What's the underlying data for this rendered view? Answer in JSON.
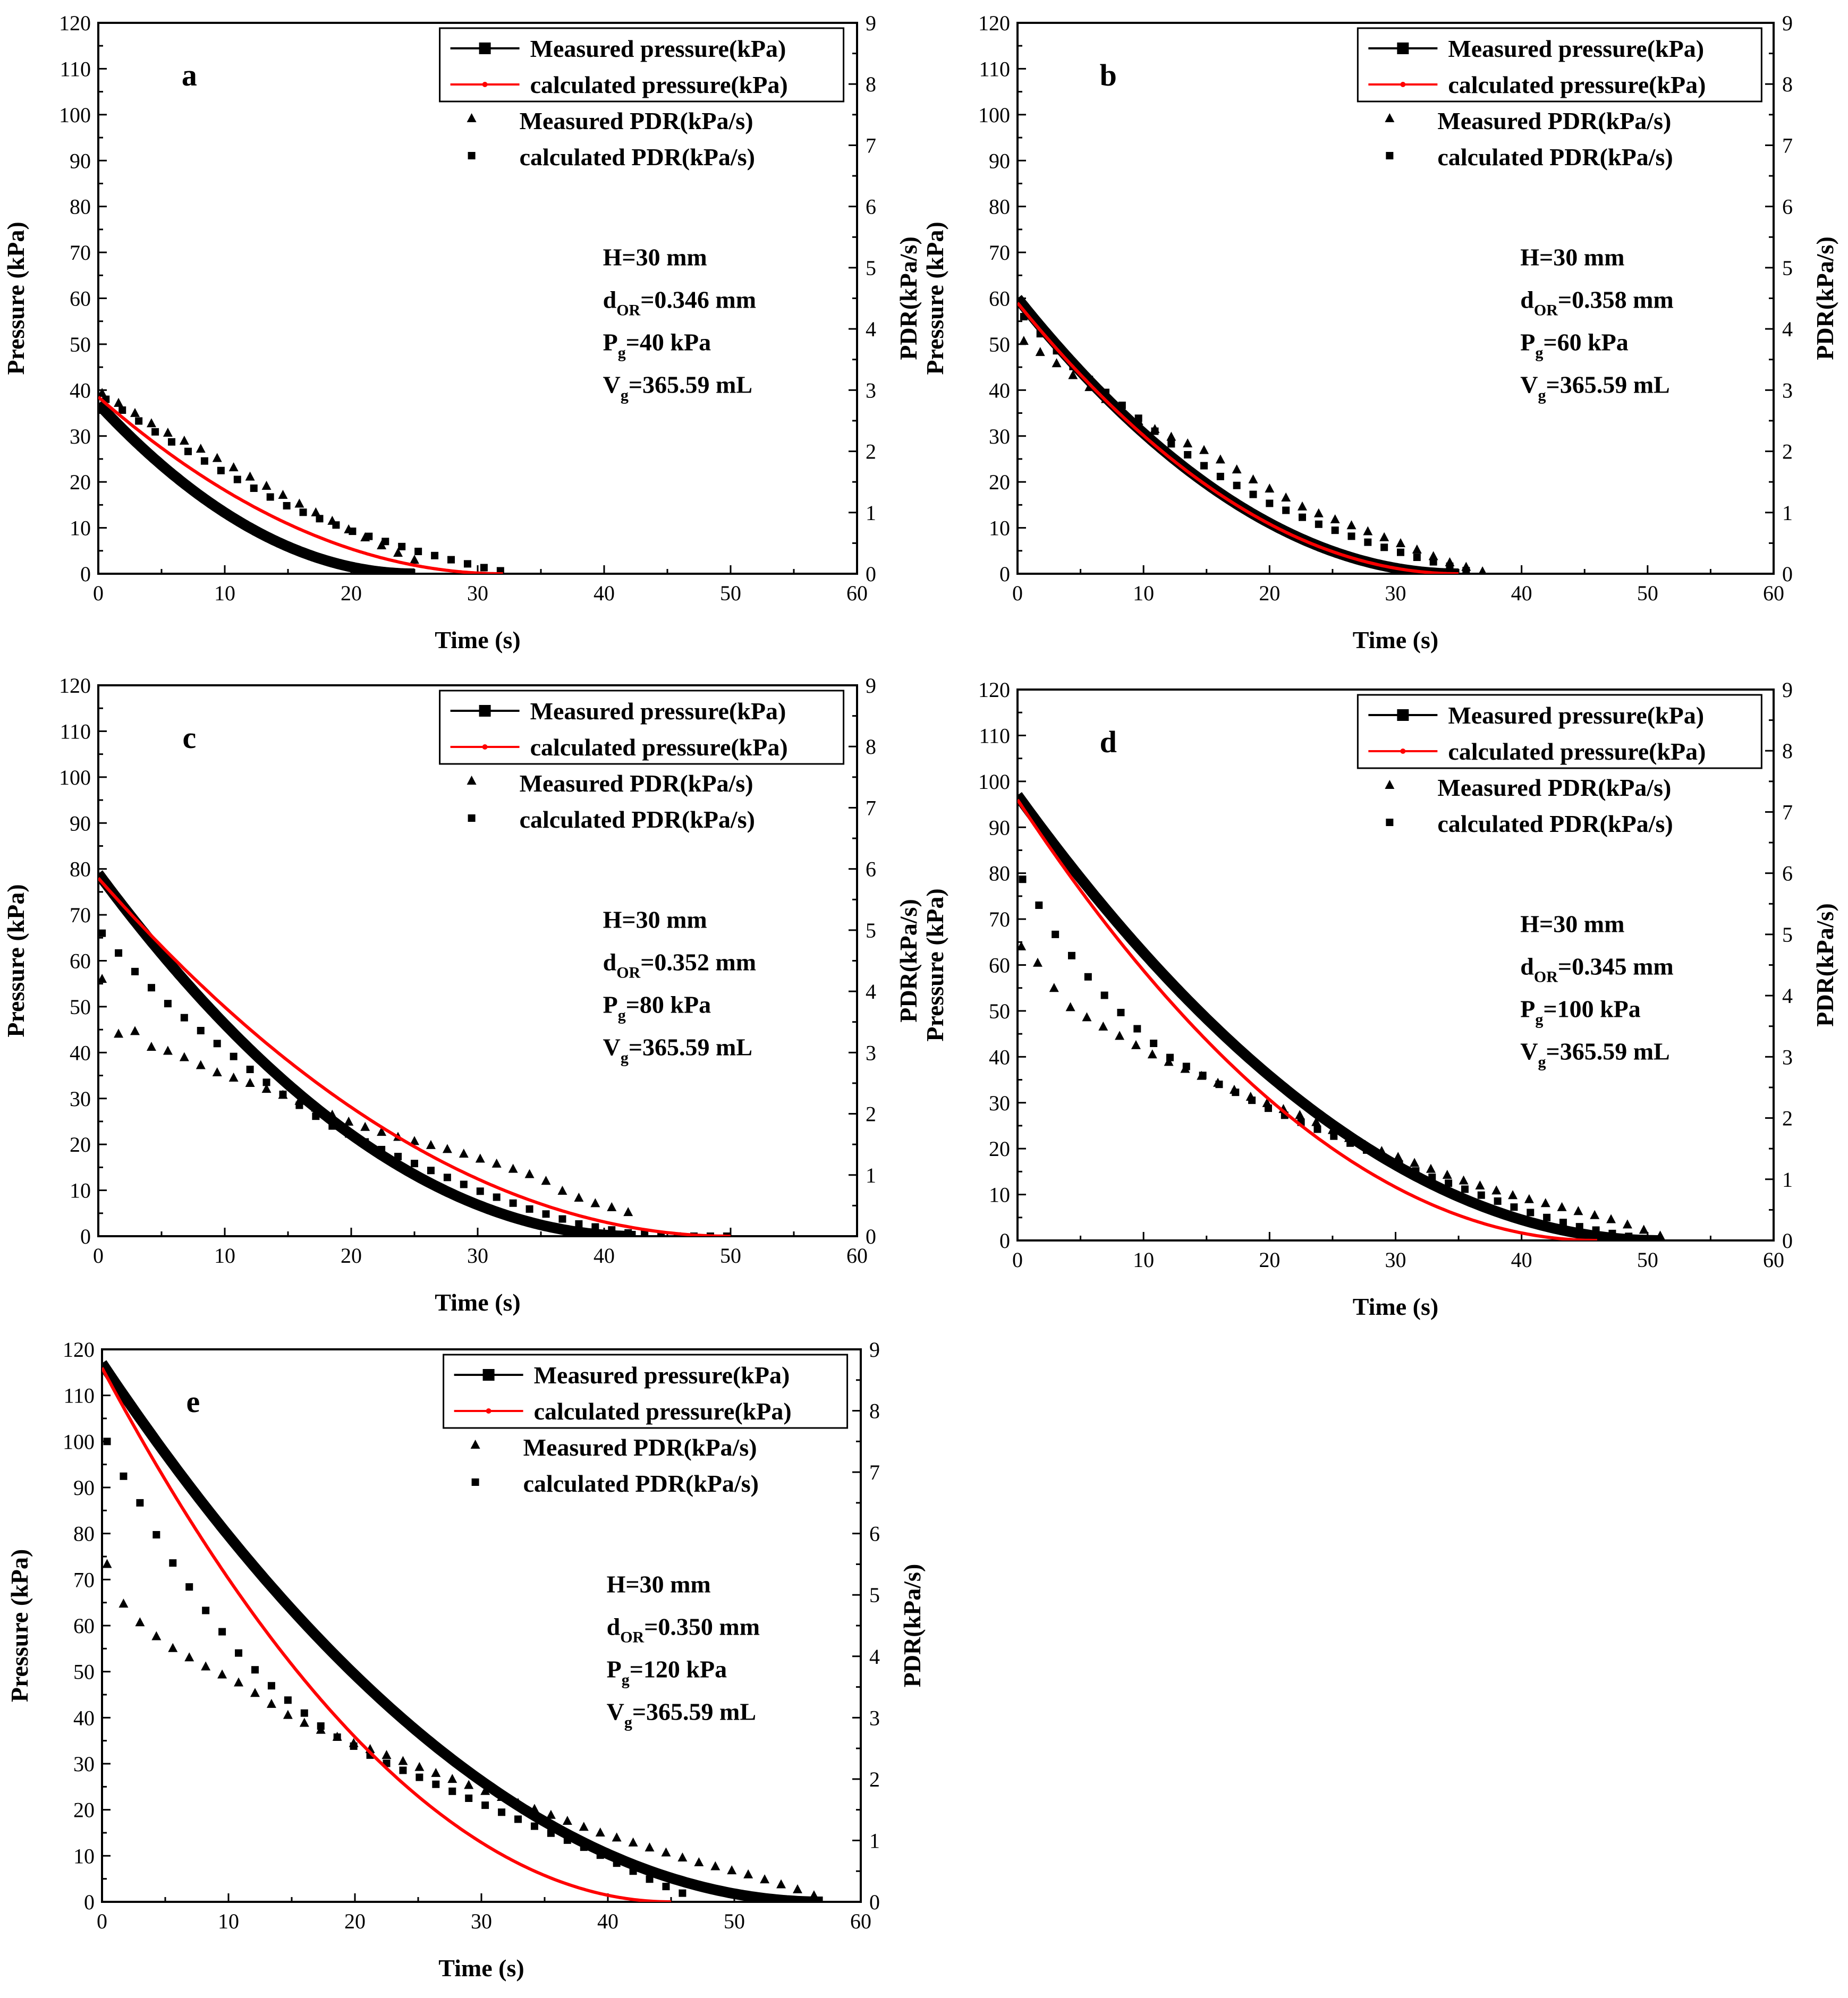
{
  "colors": {
    "measured_pressure": "#000000",
    "calculated_pressure": "#ff0000",
    "pdr": "#000000"
  },
  "shared": {
    "xlabel": "Time (s)",
    "ylabel_left": "Pressure (kPa)",
    "ylabel_right": "PDR(kPa/s)",
    "legend": [
      "Measured pressure(kPa)",
      "calculated pressure(kPa)",
      "Measured PDR(kPa/s)",
      "calculated PDR(kPa/s)"
    ],
    "xticks": [
      "0",
      "10",
      "20",
      "30",
      "40",
      "50",
      "60"
    ],
    "yticks_left": [
      "0",
      "10",
      "20",
      "30",
      "40",
      "50",
      "60",
      "70",
      "80",
      "90",
      "100",
      "110",
      "120"
    ],
    "yticks_right": [
      "0",
      "1",
      "2",
      "3",
      "4",
      "5",
      "6",
      "7",
      "8",
      "9"
    ]
  },
  "chart_data": [
    {
      "type": "line",
      "panel": "a",
      "xlim": [
        0,
        60
      ],
      "ylim_left": [
        0,
        120
      ],
      "ylim_right": [
        0,
        9
      ],
      "params": {
        "line1": "H=30 mm",
        "d_main": "d",
        "d_sub": "OR",
        "d_val": "=0.346 mm",
        "p_main": "P",
        "p_sub": "g",
        "p_val": "=40 kPa",
        "v_main": "V",
        "v_sub": "g",
        "v_val": "=365.59 mL"
      },
      "measured_pressure": {
        "p0": 37,
        "end_time": 25
      },
      "calculated_pressure": {
        "p0": 38.5,
        "end_time": 32
      },
      "measured_pdr": {
        "start_time": 0.3,
        "end_time": 25.5,
        "step": 1.3,
        "points": [
          [
            0.3,
            2.95
          ],
          [
            2.3,
            2.7
          ],
          [
            5,
            2.35
          ],
          [
            8,
            2.05
          ],
          [
            11,
            1.7
          ],
          [
            14,
            1.35
          ],
          [
            17,
            1.02
          ],
          [
            20,
            0.7
          ],
          [
            23,
            0.4
          ],
          [
            25.5,
            0.18
          ]
        ]
      },
      "calculated_pdr": {
        "start_time": 0.6,
        "end_time": 33,
        "step": 1.3,
        "points": [
          [
            0.6,
            2.85
          ],
          [
            5,
            2.25
          ],
          [
            10,
            1.65
          ],
          [
            15,
            1.1
          ],
          [
            20,
            0.7
          ],
          [
            25,
            0.38
          ],
          [
            30,
            0.12
          ],
          [
            33,
            0.0
          ]
        ]
      }
    },
    {
      "type": "line",
      "panel": "b",
      "xlim": [
        0,
        60
      ],
      "ylim_left": [
        0,
        120
      ],
      "ylim_right": [
        0,
        9
      ],
      "params": {
        "line1": "H=30 mm",
        "d_main": "d",
        "d_sub": "OR",
        "d_val": "=0.358 mm",
        "p_main": "P",
        "p_sub": "g",
        "p_val": "=60 kPa",
        "v_main": "V",
        "v_sub": "g",
        "v_val": "=365.59 mL"
      },
      "measured_pressure": {
        "p0": 60,
        "end_time": 35
      },
      "calculated_pressure": {
        "p0": 59,
        "end_time": 35
      },
      "measured_pdr": {
        "start_time": 0.5,
        "end_time": 37.5,
        "step": 1.3,
        "points": [
          [
            0.5,
            3.8
          ],
          [
            3,
            3.45
          ],
          [
            6,
            3.0
          ],
          [
            9,
            2.55
          ],
          [
            12,
            2.25
          ],
          [
            15,
            2.0
          ],
          [
            19,
            1.5
          ],
          [
            23,
            1.05
          ],
          [
            27,
            0.75
          ],
          [
            31,
            0.45
          ],
          [
            34,
            0.2
          ],
          [
            37.5,
            0.0
          ]
        ]
      },
      "calculated_pdr": {
        "start_time": 0.5,
        "end_time": 36.5,
        "step": 1.3,
        "points": [
          [
            0.5,
            4.2
          ],
          [
            4,
            3.45
          ],
          [
            8,
            2.8
          ],
          [
            12,
            2.15
          ],
          [
            16,
            1.6
          ],
          [
            20,
            1.15
          ],
          [
            24,
            0.8
          ],
          [
            28,
            0.5
          ],
          [
            32,
            0.25
          ],
          [
            36.5,
            0.0
          ]
        ]
      }
    },
    {
      "type": "line",
      "panel": "c",
      "xlim": [
        0,
        60
      ],
      "ylim_left": [
        0,
        120
      ],
      "ylim_right": [
        0,
        9
      ],
      "params": {
        "line1": "H=30 mm",
        "d_main": "d",
        "d_sub": "OR",
        "d_val": "=0.352 mm",
        "p_main": "P",
        "p_sub": "g",
        "p_val": "=80 kPa",
        "v_main": "V",
        "v_sub": "g",
        "v_val": "=365.59 mL"
      },
      "measured_pressure": {
        "p0": 79,
        "end_time": 42.5
      },
      "calculated_pressure": {
        "p0": 78,
        "end_time": 50
      },
      "measured_pdr": {
        "start_time": 0.3,
        "end_time": 42.5,
        "step": 1.3,
        "points": [
          [
            0.3,
            4.2
          ],
          [
            1.5,
            3.3
          ],
          [
            3,
            3.35
          ],
          [
            4,
            3.1
          ],
          [
            6,
            3.0
          ],
          [
            9,
            2.7
          ],
          [
            12,
            2.5
          ],
          [
            16,
            2.2
          ],
          [
            20,
            1.85
          ],
          [
            24,
            1.6
          ],
          [
            28,
            1.4
          ],
          [
            32,
            1.15
          ],
          [
            35,
            0.95
          ],
          [
            37,
            0.7
          ],
          [
            39,
            0.55
          ],
          [
            41,
            0.45
          ],
          [
            42.5,
            0.35
          ]
        ]
      },
      "calculated_pdr": {
        "start_time": 0.3,
        "end_time": 50,
        "step": 1.3,
        "points": [
          [
            0.3,
            4.95
          ],
          [
            1.5,
            4.65
          ],
          [
            3,
            4.3
          ],
          [
            6,
            3.7
          ],
          [
            10,
            3.05
          ],
          [
            14,
            2.4
          ],
          [
            18,
            1.85
          ],
          [
            22,
            1.45
          ],
          [
            26,
            1.1
          ],
          [
            30,
            0.75
          ],
          [
            34,
            0.45
          ],
          [
            38,
            0.2
          ],
          [
            42,
            0.05
          ],
          [
            46,
            0.0
          ],
          [
            50,
            0.0
          ]
        ]
      }
    },
    {
      "type": "line",
      "panel": "d",
      "xlim": [
        0,
        60
      ],
      "ylim_left": [
        0,
        120
      ],
      "ylim_right": [
        0,
        9
      ],
      "params": {
        "line1": "H=30 mm",
        "d_main": "d",
        "d_sub": "OR",
        "d_val": "=0.345 mm",
        "p_main": "P",
        "p_sub": "g",
        "p_val": "=100 kPa",
        "v_main": "V",
        "v_sub": "g",
        "v_val": "=365.59 mL"
      },
      "measured_pressure": {
        "p0": 97,
        "end_time": 51
      },
      "calculated_pressure": {
        "p0": 96,
        "end_time": 46
      },
      "measured_pdr": {
        "start_time": 0.3,
        "end_time": 52,
        "step": 1.3,
        "points": [
          [
            0.3,
            4.8
          ],
          [
            2,
            4.45
          ],
          [
            3.5,
            3.9
          ],
          [
            5,
            3.7
          ],
          [
            8,
            3.35
          ],
          [
            11,
            3.0
          ],
          [
            15,
            2.65
          ],
          [
            19,
            2.3
          ],
          [
            23,
            2.0
          ],
          [
            27,
            1.6
          ],
          [
            31,
            1.3
          ],
          [
            35,
            1.0
          ],
          [
            39,
            0.75
          ],
          [
            43,
            0.55
          ],
          [
            47,
            0.35
          ],
          [
            50,
            0.15
          ],
          [
            52,
            0.0
          ]
        ]
      },
      "calculated_pdr": {
        "start_time": 0.4,
        "end_time": 51,
        "step": 1.3,
        "points": [
          [
            0.4,
            5.9
          ],
          [
            1.5,
            5.55
          ],
          [
            3,
            5.0
          ],
          [
            6,
            4.2
          ],
          [
            9,
            3.55
          ],
          [
            12,
            3.0
          ],
          [
            16,
            2.55
          ],
          [
            20,
            2.15
          ],
          [
            24,
            1.8
          ],
          [
            28,
            1.45
          ],
          [
            32,
            1.1
          ],
          [
            36,
            0.8
          ],
          [
            40,
            0.5
          ],
          [
            44,
            0.25
          ],
          [
            48,
            0.08
          ],
          [
            51,
            0.0
          ]
        ]
      }
    },
    {
      "type": "line",
      "panel": "e",
      "xlim": [
        0,
        60
      ],
      "ylim_left": [
        0,
        120
      ],
      "ylim_right": [
        0,
        9
      ],
      "params": {
        "line1": "H=30 mm",
        "d_main": "d",
        "d_sub": "OR",
        "d_val": "=0.350 mm",
        "p_main": "P",
        "p_sub": "g",
        "p_val": "=120 kPa",
        "v_main": "V",
        "v_sub": "g",
        "v_val": "=365.59 mL"
      },
      "measured_pressure": {
        "p0": 117,
        "end_time": 57
      },
      "calculated_pressure": {
        "p0": 116,
        "end_time": 45
      },
      "measured_pdr": {
        "start_time": 0.4,
        "end_time": 57,
        "step": 1.3,
        "points": [
          [
            0.4,
            5.5
          ],
          [
            1.5,
            4.9
          ],
          [
            3,
            4.55
          ],
          [
            5,
            4.2
          ],
          [
            8,
            3.85
          ],
          [
            11,
            3.55
          ],
          [
            15,
            3.0
          ],
          [
            19,
            2.65
          ],
          [
            23,
            2.35
          ],
          [
            27,
            2.05
          ],
          [
            31,
            1.75
          ],
          [
            35,
            1.45
          ],
          [
            39,
            1.15
          ],
          [
            43,
            0.9
          ],
          [
            47,
            0.65
          ],
          [
            51,
            0.45
          ],
          [
            55,
            0.2
          ],
          [
            57,
            0.05
          ]
        ]
      },
      "calculated_pdr": {
        "start_time": 0.4,
        "end_time": 47,
        "step": 1.3,
        "points": [
          [
            0.4,
            7.5
          ],
          [
            1.5,
            7.0
          ],
          [
            3,
            6.5
          ],
          [
            5,
            5.7
          ],
          [
            8,
            4.8
          ],
          [
            11,
            4.0
          ],
          [
            14,
            3.4
          ],
          [
            18,
            2.75
          ],
          [
            22,
            2.3
          ],
          [
            26,
            1.95
          ],
          [
            30,
            1.6
          ],
          [
            34,
            1.25
          ],
          [
            38,
            0.9
          ],
          [
            41,
            0.6
          ],
          [
            44,
            0.3
          ],
          [
            47,
            0.05
          ]
        ]
      }
    }
  ]
}
